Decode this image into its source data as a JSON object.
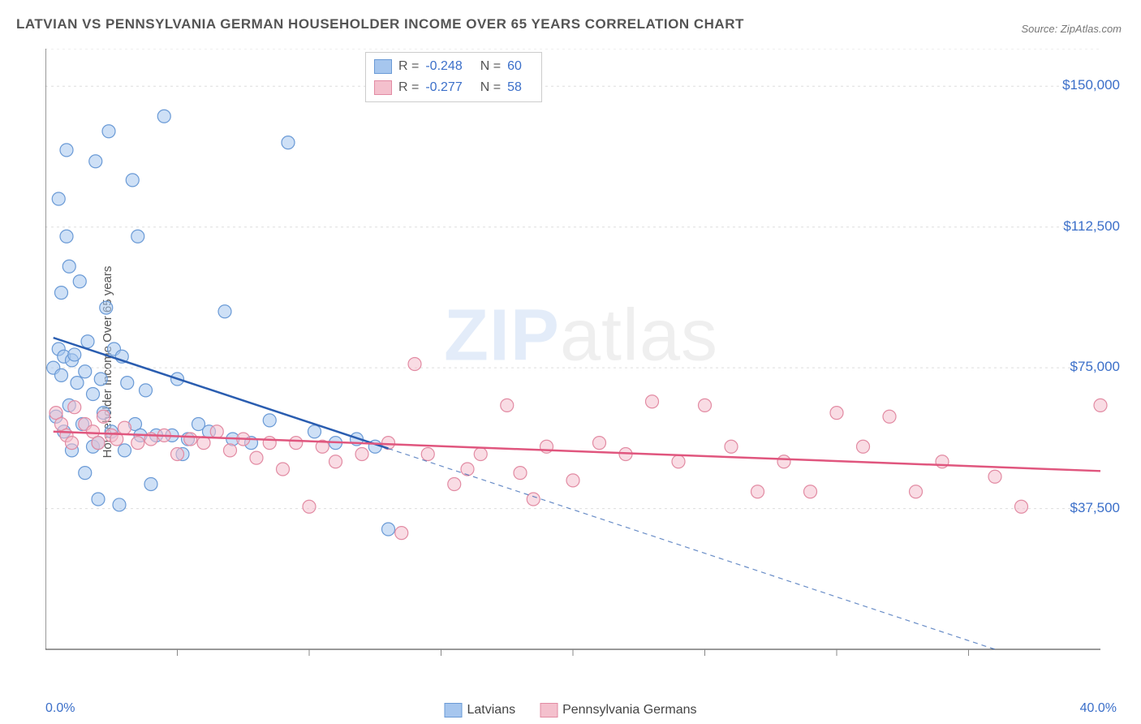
{
  "title": "LATVIAN VS PENNSYLVANIA GERMAN HOUSEHOLDER INCOME OVER 65 YEARS CORRELATION CHART",
  "source": "Source: ZipAtlas.com",
  "ylabel": "Householder Income Over 65 years",
  "watermark": {
    "bold": "ZIP",
    "rest": "atlas"
  },
  "chart": {
    "type": "scatter",
    "xlim": [
      0,
      40
    ],
    "ylim": [
      0,
      160000
    ],
    "xticks_minor": [
      5,
      10,
      15,
      20,
      25,
      30,
      35
    ],
    "xlabel_min": "0.0%",
    "xlabel_max": "40.0%",
    "yticks": [
      {
        "v": 37500,
        "label": "$37,500"
      },
      {
        "v": 75000,
        "label": "$75,000"
      },
      {
        "v": 112500,
        "label": "$112,500"
      },
      {
        "v": 150000,
        "label": "$150,000"
      }
    ],
    "grid_color": "#dddddd",
    "axis_color": "#333333",
    "background_color": "#ffffff",
    "marker_radius": 8,
    "marker_opacity": 0.55,
    "series": [
      {
        "name": "Latvians",
        "color_fill": "#a6c6ee",
        "color_stroke": "#6a9ad6",
        "R": "-0.248",
        "N": "60",
        "trend": {
          "x1": 0.3,
          "y1": 83000,
          "x2": 13,
          "y2": 53500,
          "color": "#2a5db0",
          "width": 2.5,
          "dash_ext_to_x": 36,
          "dash_ext_y": 0
        },
        "points": [
          [
            0.3,
            75000
          ],
          [
            0.4,
            62000
          ],
          [
            0.5,
            80000
          ],
          [
            0.5,
            120000
          ],
          [
            0.6,
            73000
          ],
          [
            0.6,
            95000
          ],
          [
            0.7,
            58000
          ],
          [
            0.7,
            78000
          ],
          [
            0.8,
            110000
          ],
          [
            0.8,
            133000
          ],
          [
            0.9,
            102000
          ],
          [
            0.9,
            65000
          ],
          [
            1.0,
            77000
          ],
          [
            1.0,
            53000
          ],
          [
            1.1,
            78500
          ],
          [
            1.2,
            71000
          ],
          [
            1.3,
            98000
          ],
          [
            1.4,
            60000
          ],
          [
            1.5,
            47000
          ],
          [
            1.5,
            74000
          ],
          [
            1.6,
            82000
          ],
          [
            1.8,
            54000
          ],
          [
            1.8,
            68000
          ],
          [
            1.9,
            130000
          ],
          [
            2.0,
            40000
          ],
          [
            2.0,
            55000
          ],
          [
            2.1,
            72000
          ],
          [
            2.2,
            63000
          ],
          [
            2.3,
            91000
          ],
          [
            2.4,
            138000
          ],
          [
            2.5,
            58000
          ],
          [
            2.6,
            80000
          ],
          [
            2.8,
            38500
          ],
          [
            2.9,
            78000
          ],
          [
            3.0,
            53000
          ],
          [
            3.1,
            71000
          ],
          [
            3.3,
            125000
          ],
          [
            3.4,
            60000
          ],
          [
            3.5,
            110000
          ],
          [
            3.6,
            57000
          ],
          [
            3.8,
            69000
          ],
          [
            4.0,
            44000
          ],
          [
            4.2,
            57000
          ],
          [
            4.5,
            142000
          ],
          [
            4.8,
            57000
          ],
          [
            5.0,
            72000
          ],
          [
            5.2,
            52000
          ],
          [
            5.4,
            56000
          ],
          [
            5.8,
            60000
          ],
          [
            6.2,
            58000
          ],
          [
            6.8,
            90000
          ],
          [
            7.1,
            56000
          ],
          [
            7.8,
            55000
          ],
          [
            8.5,
            61000
          ],
          [
            9.2,
            135000
          ],
          [
            10.2,
            58000
          ],
          [
            11.0,
            55000
          ],
          [
            11.8,
            56000
          ],
          [
            12.5,
            54000
          ],
          [
            13.0,
            32000
          ]
        ]
      },
      {
        "name": "Pennsylvania Germans",
        "color_fill": "#f4c0cd",
        "color_stroke": "#e28ba3",
        "R": "-0.277",
        "N": "58",
        "trend": {
          "x1": 0.3,
          "y1": 58000,
          "x2": 40,
          "y2": 47500,
          "color": "#e0567e",
          "width": 2.5
        },
        "points": [
          [
            0.4,
            63000
          ],
          [
            0.6,
            60000
          ],
          [
            0.8,
            57000
          ],
          [
            1.0,
            55000
          ],
          [
            1.1,
            64500
          ],
          [
            1.5,
            60000
          ],
          [
            1.8,
            58000
          ],
          [
            2.0,
            55000
          ],
          [
            2.2,
            62000
          ],
          [
            2.5,
            57000
          ],
          [
            2.7,
            56000
          ],
          [
            3.0,
            59000
          ],
          [
            3.5,
            55000
          ],
          [
            4.0,
            56000
          ],
          [
            4.5,
            57000
          ],
          [
            5.0,
            52000
          ],
          [
            5.5,
            56000
          ],
          [
            6.0,
            55000
          ],
          [
            6.5,
            58000
          ],
          [
            7.0,
            53000
          ],
          [
            7.5,
            56000
          ],
          [
            8.0,
            51000
          ],
          [
            8.5,
            55000
          ],
          [
            9.0,
            48000
          ],
          [
            9.5,
            55000
          ],
          [
            10.0,
            38000
          ],
          [
            10.5,
            54000
          ],
          [
            11.0,
            50000
          ],
          [
            12.0,
            52000
          ],
          [
            13.0,
            55000
          ],
          [
            13.5,
            31000
          ],
          [
            14.0,
            76000
          ],
          [
            14.5,
            52000
          ],
          [
            15.5,
            44000
          ],
          [
            16.0,
            48000
          ],
          [
            16.5,
            52000
          ],
          [
            17.5,
            65000
          ],
          [
            18.0,
            47000
          ],
          [
            18.5,
            40000
          ],
          [
            19.0,
            54000
          ],
          [
            20.0,
            45000
          ],
          [
            21.0,
            55000
          ],
          [
            22.0,
            52000
          ],
          [
            23.0,
            66000
          ],
          [
            24.0,
            50000
          ],
          [
            25.0,
            65000
          ],
          [
            26.0,
            54000
          ],
          [
            27.0,
            42000
          ],
          [
            28.0,
            50000
          ],
          [
            29.0,
            42000
          ],
          [
            30.0,
            63000
          ],
          [
            31.0,
            54000
          ],
          [
            32.0,
            62000
          ],
          [
            33.0,
            42000
          ],
          [
            34.0,
            50000
          ],
          [
            36.0,
            46000
          ],
          [
            37.0,
            38000
          ],
          [
            40.0,
            65000
          ]
        ]
      }
    ]
  },
  "legend_bottom": [
    {
      "label": "Latvians",
      "fill": "#a6c6ee",
      "stroke": "#6a9ad6"
    },
    {
      "label": "Pennsylvania Germans",
      "fill": "#f4c0cd",
      "stroke": "#e28ba3"
    }
  ]
}
